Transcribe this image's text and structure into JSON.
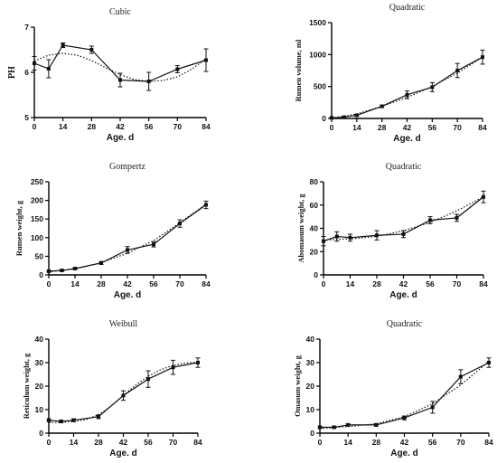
{
  "chart_data": [
    {
      "type": "line",
      "title": "Cubic",
      "xlabel": "Age. d",
      "ylabel": "PH",
      "xlim": [
        0,
        84
      ],
      "ylim": [
        5,
        7
      ],
      "xticks": [
        0,
        14,
        28,
        42,
        56,
        70,
        84
      ],
      "yticks": [
        5,
        6,
        7
      ],
      "observed": {
        "x": [
          0,
          7,
          14,
          28,
          42,
          56,
          70,
          84
        ],
        "y": [
          6.2,
          6.08,
          6.6,
          6.5,
          5.83,
          5.8,
          6.07,
          6.27
        ],
        "err": [
          0.15,
          0.2,
          0.05,
          0.08,
          0.15,
          0.2,
          0.08,
          0.25
        ]
      },
      "fitted": {
        "x": [
          0,
          7,
          14,
          21,
          28,
          35,
          42,
          49,
          56,
          63,
          70,
          77,
          84
        ],
        "y": [
          6.25,
          6.38,
          6.42,
          6.38,
          6.26,
          6.1,
          5.95,
          5.84,
          5.8,
          5.82,
          5.9,
          6.07,
          6.3
        ]
      },
      "grid": false
    },
    {
      "type": "line",
      "title": "Quadratic",
      "xlabel": "Age. d",
      "ylabel": "Rumen volume, ml",
      "xlim": [
        0,
        84
      ],
      "ylim": [
        0,
        1500
      ],
      "xticks": [
        0,
        14,
        28,
        42,
        56,
        70,
        84
      ],
      "yticks": [
        0,
        500,
        1000,
        1500
      ],
      "observed": {
        "x": [
          0,
          7,
          14,
          28,
          42,
          56,
          70,
          84
        ],
        "y": [
          10,
          20,
          50,
          190,
          370,
          490,
          750,
          960
        ],
        "err": [
          5,
          8,
          15,
          20,
          60,
          70,
          110,
          110
        ]
      },
      "fitted": {
        "x": [
          0,
          14,
          28,
          42,
          56,
          70,
          84
        ],
        "y": [
          5,
          70,
          190,
          330,
          500,
          710,
          960
        ]
      },
      "grid": false
    },
    {
      "type": "line",
      "title": "Gompertz",
      "xlabel": "Age. d",
      "ylabel": "Rumen weight, g",
      "xlim": [
        0,
        84
      ],
      "ylim": [
        0,
        250
      ],
      "xticks": [
        0,
        14,
        28,
        42,
        56,
        70,
        84
      ],
      "yticks": [
        0,
        50,
        100,
        150,
        200,
        250
      ],
      "observed": {
        "x": [
          0,
          7,
          14,
          28,
          42,
          56,
          70,
          84
        ],
        "y": [
          10,
          12,
          17,
          32,
          67,
          82,
          138,
          188
        ],
        "err": [
          2,
          2,
          3,
          4,
          9,
          7,
          10,
          10
        ]
      },
      "fitted": {
        "x": [
          0,
          14,
          28,
          42,
          56,
          70,
          84
        ],
        "y": [
          8,
          16,
          33,
          58,
          92,
          140,
          190
        ]
      },
      "grid": false
    },
    {
      "type": "line",
      "title": "Quadratic",
      "xlabel": "Age. d",
      "ylabel": "Abomasum weight, g",
      "xlim": [
        0,
        84
      ],
      "ylim": [
        0,
        80
      ],
      "xticks": [
        0,
        14,
        28,
        42,
        56,
        70,
        84
      ],
      "yticks": [
        0,
        20,
        40,
        60,
        80
      ],
      "observed": {
        "x": [
          0,
          7,
          14,
          28,
          42,
          56,
          70,
          84
        ],
        "y": [
          29,
          33,
          32,
          34,
          35,
          47,
          49,
          67
        ],
        "err": [
          4,
          4,
          3,
          4,
          3,
          3,
          3,
          5
        ]
      },
      "fitted": {
        "x": [
          0,
          14,
          28,
          42,
          56,
          70,
          84
        ],
        "y": [
          30,
          31,
          33,
          38,
          45,
          55,
          67
        ]
      },
      "grid": false
    },
    {
      "type": "line",
      "title": "Weibull",
      "xlabel": "Age. d",
      "ylabel": "Reticulum weight, g",
      "xlim": [
        0,
        84
      ],
      "ylim": [
        0,
        40
      ],
      "xticks": [
        0,
        14,
        28,
        42,
        56,
        70,
        84
      ],
      "yticks": [
        0,
        10,
        20,
        30,
        40
      ],
      "observed": {
        "x": [
          0,
          7,
          14,
          28,
          42,
          56,
          70,
          84
        ],
        "y": [
          5.5,
          5,
          5.5,
          7,
          16,
          23,
          28,
          30
        ],
        "err": [
          0.6,
          0.6,
          0.6,
          0.8,
          2,
          3.5,
          3,
          2
        ]
      },
      "fitted": {
        "x": [
          0,
          7,
          14,
          21,
          28,
          35,
          42,
          49,
          56,
          63,
          70,
          77,
          84
        ],
        "y": [
          4.5,
          4.6,
          5,
          5.8,
          7.8,
          11.5,
          16,
          20.5,
          24.2,
          27,
          28.8,
          29.8,
          30.3
        ]
      },
      "grid": false
    },
    {
      "type": "line",
      "title": "Quadratic",
      "xlabel": "Age. d",
      "ylabel": "Omasum weight, g",
      "xlim": [
        0,
        84
      ],
      "ylim": [
        0,
        40
      ],
      "xticks": [
        0,
        14,
        28,
        42,
        56,
        70,
        84
      ],
      "yticks": [
        0,
        10,
        20,
        30,
        40
      ],
      "observed": {
        "x": [
          0,
          7,
          14,
          28,
          42,
          56,
          70,
          84
        ],
        "y": [
          2.5,
          2.5,
          3.5,
          3.5,
          6.5,
          11,
          24,
          30
        ],
        "err": [
          0.5,
          0.5,
          0.5,
          0.5,
          0.8,
          2.5,
          3,
          2
        ]
      },
      "fitted": {
        "x": [
          0,
          14,
          28,
          42,
          56,
          70,
          84
        ],
        "y": [
          2,
          2.8,
          4,
          7,
          12.5,
          20.5,
          30.5
        ]
      },
      "grid": false
    }
  ]
}
